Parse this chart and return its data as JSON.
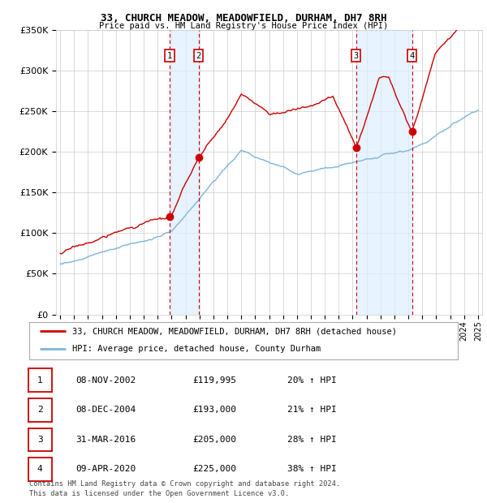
{
  "title": "33, CHURCH MEADOW, MEADOWFIELD, DURHAM, DH7 8RH",
  "subtitle": "Price paid vs. HM Land Registry's House Price Index (HPI)",
  "sale_label": "33, CHURCH MEADOW, MEADOWFIELD, DURHAM, DH7 8RH (detached house)",
  "hpi_label": "HPI: Average price, detached house, County Durham",
  "footer1": "Contains HM Land Registry data © Crown copyright and database right 2024.",
  "footer2": "This data is licensed under the Open Government Licence v3.0.",
  "sales": [
    {
      "num": 1,
      "date": "08-NOV-2002",
      "price": 119995,
      "pct": "20%",
      "dir": "↑",
      "year": 2002.86
    },
    {
      "num": 2,
      "date": "08-DEC-2004",
      "price": 193000,
      "pct": "21%",
      "dir": "↑",
      "year": 2004.93
    },
    {
      "num": 3,
      "date": "31-MAR-2016",
      "price": 205000,
      "pct": "28%",
      "dir": "↑",
      "year": 2016.25
    },
    {
      "num": 4,
      "date": "09-APR-2020",
      "price": 225000,
      "pct": "38%",
      "dir": "↑",
      "year": 2020.27
    }
  ],
  "ylim": [
    0,
    350000
  ],
  "yticks": [
    0,
    50000,
    100000,
    150000,
    200000,
    250000,
    300000,
    350000
  ],
  "xlim": [
    1994.7,
    2025.3
  ],
  "red_color": "#cc0000",
  "blue_color": "#7db5d8",
  "shade_color": "#ddeeff",
  "grid_color": "#cccccc",
  "bg_color": "#ffffff"
}
